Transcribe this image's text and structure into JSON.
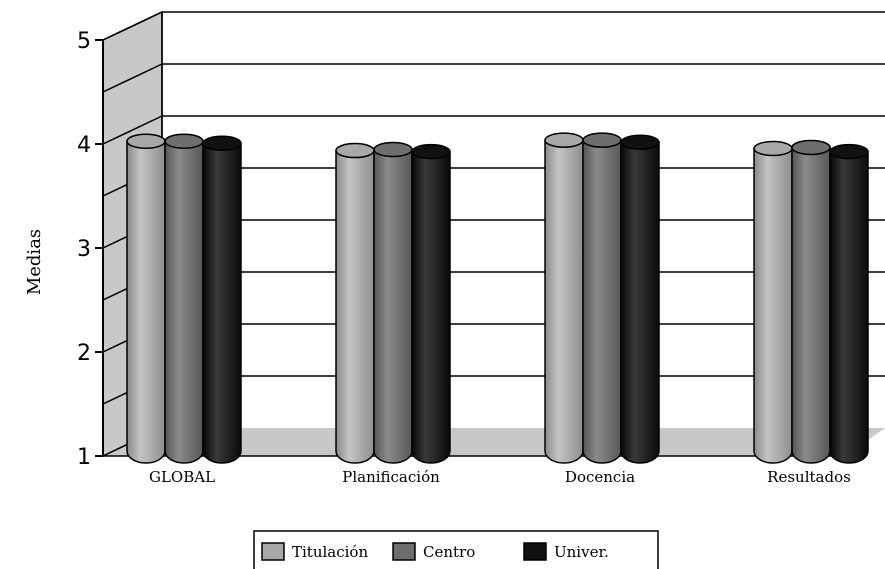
{
  "chart_data": {
    "type": "bar",
    "ylabel": "Medias",
    "xlabel": "",
    "ylim": [
      1,
      5
    ],
    "yticks": [
      1,
      2,
      3,
      4,
      5
    ],
    "categories": [
      "GLOBAL",
      "Planificación",
      "Docencia",
      "Resultados"
    ],
    "series": [
      {
        "name": "Titulación",
        "values": [
          3.95,
          3.86,
          3.96,
          3.88
        ],
        "color": "#a8a8a8"
      },
      {
        "name": "Centro",
        "values": [
          3.95,
          3.87,
          3.96,
          3.89
        ],
        "color": "#6e6e6e"
      },
      {
        "name": "Univer.",
        "values": [
          3.93,
          3.85,
          3.94,
          3.85
        ],
        "color": "#111111"
      }
    ],
    "grid": true,
    "legend": "bottom",
    "style": "3d-cylinder"
  }
}
